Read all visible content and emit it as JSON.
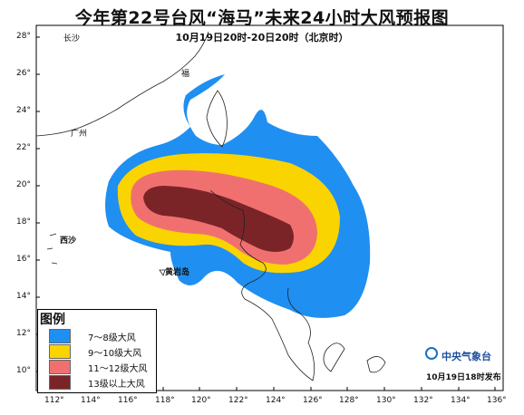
{
  "title": "今年第22号台风“海马”未来24小时大风预报图",
  "subtitle": "10月19日20时-20日20时（北京时）",
  "legend": {
    "title": "图例",
    "items": [
      {
        "label": "7～8级大风",
        "color": "#1f8ff2"
      },
      {
        "label": "9～10级大风",
        "color": "#fad400"
      },
      {
        "label": "11～12级大风",
        "color": "#f07070"
      },
      {
        "label": "13级以上大风",
        "color": "#7a2428"
      }
    ]
  },
  "axes": {
    "lon_labels": [
      "112°",
      "114°",
      "116°",
      "118°",
      "120°",
      "122°",
      "124°",
      "126°",
      "128°",
      "130°",
      "132°",
      "134°",
      "136°"
    ],
    "lat_labels": [
      "28°",
      "26°",
      "24°",
      "22°",
      "20°",
      "18°",
      "16°",
      "14°",
      "12°",
      "10°"
    ]
  },
  "places": {
    "xisha": "西沙",
    "huangyan": "黄岩岛",
    "changsha": "长沙",
    "guangzhou": "广州",
    "fuzhou": "福"
  },
  "issuer": {
    "name": "中央气象台",
    "issued": "10月19日18时发布"
  }
}
